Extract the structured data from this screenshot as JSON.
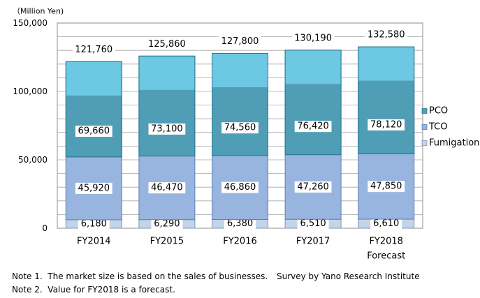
{
  "chart_data": {
    "type": "bar",
    "stacked": true,
    "unit_label": "（Million Yen)",
    "categories": [
      {
        "line1": "FY2014",
        "line2": ""
      },
      {
        "line1": "FY2015",
        "line2": ""
      },
      {
        "line1": "FY2016",
        "line2": ""
      },
      {
        "line1": "FY2017",
        "line2": ""
      },
      {
        "line1": "FY2018",
        "line2": "Forecast"
      }
    ],
    "series": [
      {
        "name": "Fumigation",
        "values": [
          6180,
          6290,
          6380,
          6510,
          6610
        ],
        "labels": [
          "6,180",
          "6,290",
          "6,380",
          "6,510",
          "6,610"
        ],
        "color": "#c4d4e8",
        "edge": "#7f95b5"
      },
      {
        "name": "TCO",
        "values": [
          45920,
          46470,
          46860,
          47260,
          47850
        ],
        "labels": [
          "45,920",
          "46,470",
          "46,860",
          "47,260",
          "47,850"
        ],
        "color": "#98b5df",
        "edge": "#5f7fb5"
      },
      {
        "name": "PCO",
        "values": [
          69660,
          73100,
          74560,
          76420,
          78120
        ],
        "labels": [
          "69,660",
          "73,100",
          "74,560",
          "76,420",
          "78,120"
        ],
        "color": "#4f9eb6",
        "edge": "#2f7a92"
      }
    ],
    "top_cap_color": "#6cc8e3",
    "totals": [
      121760,
      125860,
      127800,
      130190,
      132580
    ],
    "total_labels": [
      "121,760",
      "125,860",
      "127,800",
      "130,190",
      "132,580"
    ],
    "ylim": [
      0,
      150000
    ],
    "yticks": [
      0,
      50000,
      100000,
      150000
    ],
    "ytick_labels": [
      "0",
      "50,000",
      "100,000",
      "150,000"
    ],
    "grid": true,
    "legend_position": "right",
    "legend_order": [
      "PCO",
      "TCO",
      "Fumigation"
    ]
  },
  "notes": {
    "note1": "Note 1.  The market size is based on the sales of businesses.",
    "source": "Survey by Yano Research Institute",
    "note2": "Note 2.  Value for FY2018 is a forecast."
  }
}
